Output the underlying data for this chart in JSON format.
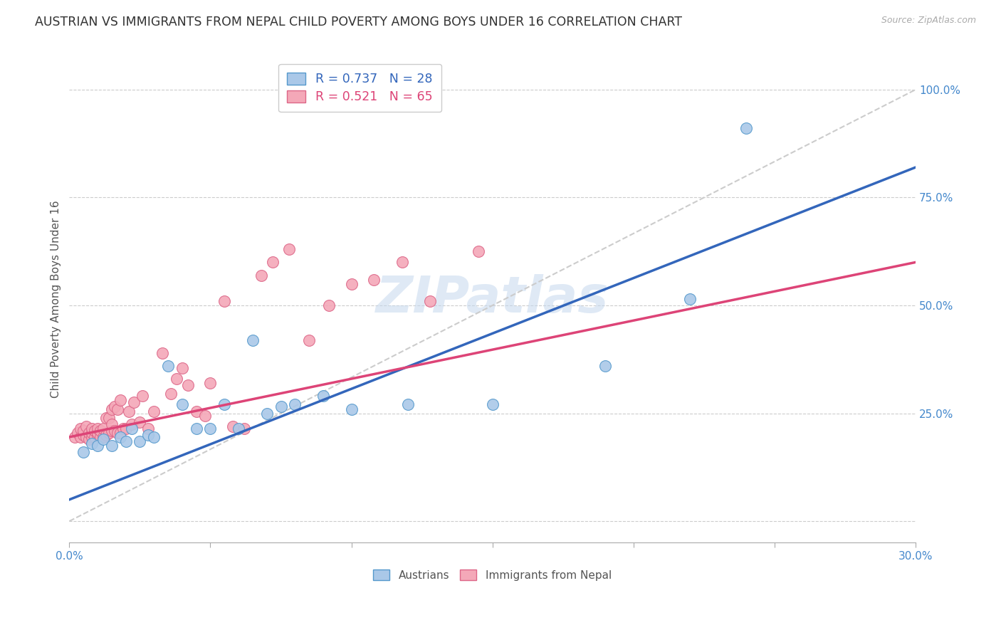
{
  "title": "AUSTRIAN VS IMMIGRANTS FROM NEPAL CHILD POVERTY AMONG BOYS UNDER 16 CORRELATION CHART",
  "source": "Source: ZipAtlas.com",
  "ylabel": "Child Poverty Among Boys Under 16",
  "xlim": [
    0.0,
    0.3
  ],
  "ylim": [
    -0.05,
    1.08
  ],
  "xtick_positions": [
    0.0,
    0.05,
    0.1,
    0.15,
    0.2,
    0.25,
    0.3
  ],
  "xtick_labels": [
    "0.0%",
    "",
    "",
    "",
    "",
    "",
    "30.0%"
  ],
  "ytick_positions": [
    0.0,
    0.25,
    0.5,
    0.75,
    1.0
  ],
  "ytick_labels": [
    "",
    "25.0%",
    "50.0%",
    "75.0%",
    "100.0%"
  ],
  "blue_R": 0.737,
  "blue_N": 28,
  "pink_R": 0.521,
  "pink_N": 65,
  "blue_dot_color": "#aac8e8",
  "pink_dot_color": "#f4a8b8",
  "blue_edge_color": "#5599cc",
  "pink_edge_color": "#dd6688",
  "blue_line_color": "#3366bb",
  "pink_line_color": "#dd4477",
  "ref_line_color": "#cccccc",
  "watermark": "ZIPatlas",
  "blue_line_x0": 0.0,
  "blue_line_y0": 0.05,
  "blue_line_x1": 0.3,
  "blue_line_y1": 0.82,
  "pink_line_x0": 0.0,
  "pink_line_y0": 0.195,
  "pink_line_x1": 0.3,
  "pink_line_y1": 0.6,
  "ref_line_x0": 0.0,
  "ref_line_y0": 0.0,
  "ref_line_x1": 0.3,
  "ref_line_y1": 1.0,
  "blue_scatter_x": [
    0.005,
    0.008,
    0.01,
    0.012,
    0.015,
    0.018,
    0.02,
    0.022,
    0.025,
    0.028,
    0.03,
    0.035,
    0.04,
    0.045,
    0.05,
    0.055,
    0.06,
    0.065,
    0.07,
    0.075,
    0.08,
    0.09,
    0.1,
    0.12,
    0.15,
    0.19,
    0.22,
    0.24
  ],
  "blue_scatter_y": [
    0.16,
    0.18,
    0.175,
    0.19,
    0.175,
    0.195,
    0.185,
    0.215,
    0.185,
    0.2,
    0.195,
    0.36,
    0.27,
    0.215,
    0.215,
    0.27,
    0.215,
    0.42,
    0.25,
    0.265,
    0.27,
    0.29,
    0.26,
    0.27,
    0.27,
    0.36,
    0.515,
    0.91
  ],
  "pink_scatter_x": [
    0.002,
    0.003,
    0.004,
    0.004,
    0.005,
    0.005,
    0.006,
    0.006,
    0.007,
    0.007,
    0.008,
    0.008,
    0.008,
    0.009,
    0.009,
    0.01,
    0.01,
    0.01,
    0.011,
    0.011,
    0.012,
    0.012,
    0.013,
    0.013,
    0.014,
    0.014,
    0.015,
    0.015,
    0.015,
    0.016,
    0.016,
    0.017,
    0.017,
    0.018,
    0.018,
    0.019,
    0.02,
    0.021,
    0.022,
    0.023,
    0.025,
    0.026,
    0.028,
    0.03,
    0.033,
    0.036,
    0.038,
    0.04,
    0.042,
    0.045,
    0.048,
    0.05,
    0.055,
    0.058,
    0.062,
    0.068,
    0.072,
    0.078,
    0.085,
    0.092,
    0.1,
    0.108,
    0.118,
    0.128,
    0.145
  ],
  "pink_scatter_y": [
    0.195,
    0.205,
    0.195,
    0.215,
    0.2,
    0.21,
    0.195,
    0.22,
    0.19,
    0.205,
    0.195,
    0.205,
    0.215,
    0.195,
    0.21,
    0.2,
    0.205,
    0.215,
    0.195,
    0.21,
    0.195,
    0.215,
    0.2,
    0.24,
    0.205,
    0.24,
    0.21,
    0.225,
    0.26,
    0.21,
    0.265,
    0.205,
    0.26,
    0.205,
    0.28,
    0.215,
    0.215,
    0.255,
    0.225,
    0.275,
    0.23,
    0.29,
    0.215,
    0.255,
    0.39,
    0.295,
    0.33,
    0.355,
    0.315,
    0.255,
    0.245,
    0.32,
    0.51,
    0.22,
    0.215,
    0.57,
    0.6,
    0.63,
    0.42,
    0.5,
    0.55,
    0.56,
    0.6,
    0.51,
    0.625
  ],
  "grid_color": "#cccccc",
  "background_color": "#ffffff",
  "title_fontsize": 12.5,
  "label_fontsize": 11,
  "tick_fontsize": 11,
  "legend_blue_label": "Austrians",
  "legend_pink_label": "Immigrants from Nepal",
  "tick_color": "#4488cc"
}
